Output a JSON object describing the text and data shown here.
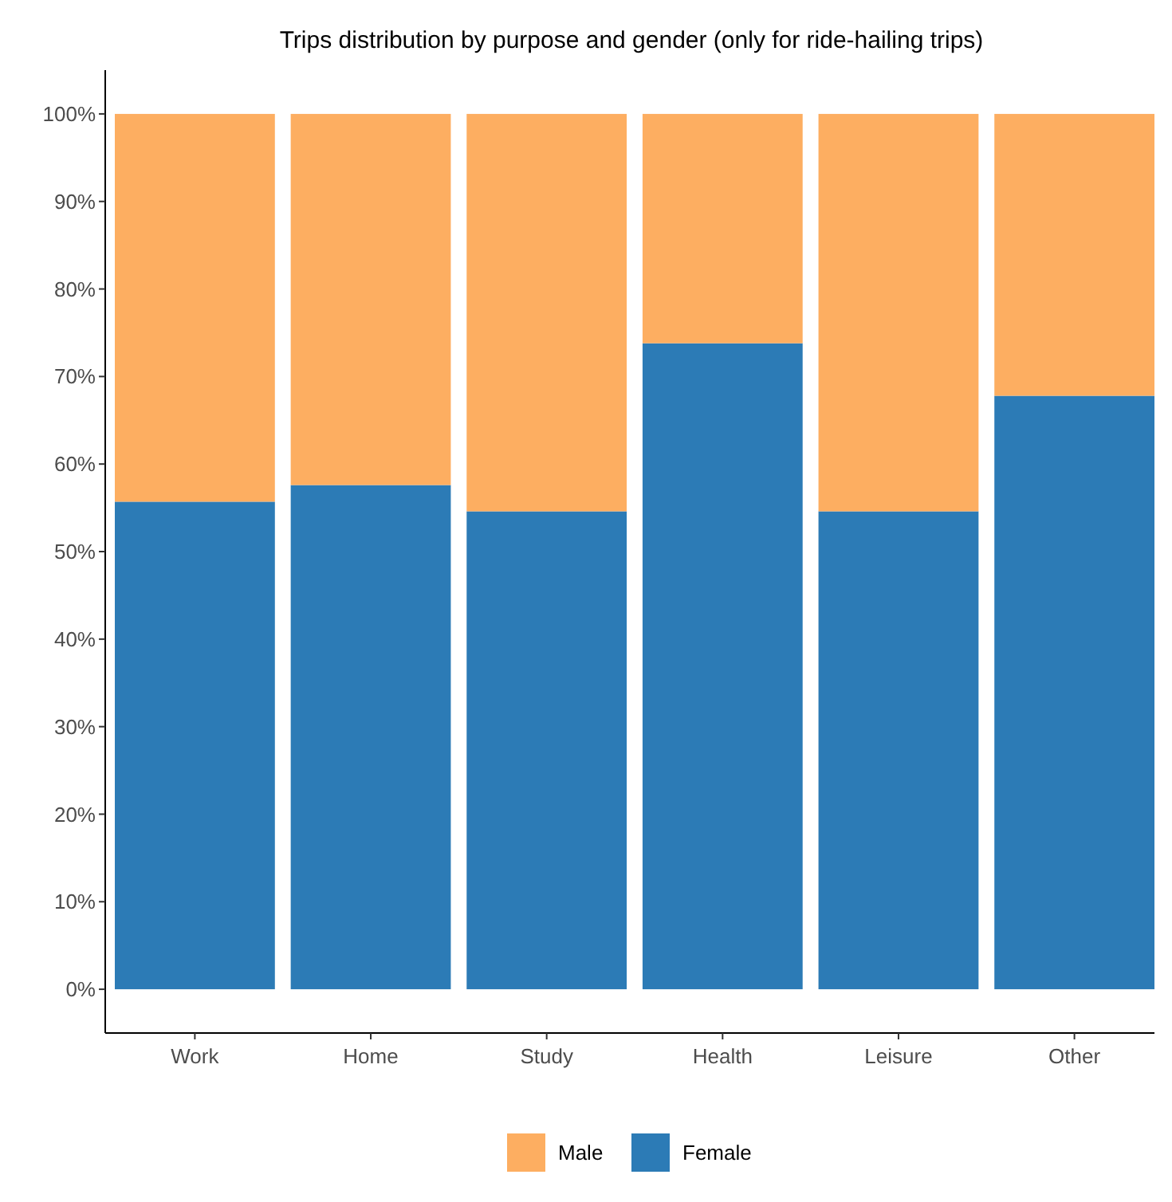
{
  "chart_data": {
    "type": "bar",
    "title": "Trips distribution by purpose and gender (only for ride-hailing trips)",
    "categories": [
      "Work",
      "Home",
      "Study",
      "Health",
      "Leisure",
      "Other"
    ],
    "stacked": true,
    "legend": "bottom",
    "grid": false,
    "series": [
      {
        "name": "Female",
        "color": "#2c7bb6",
        "values": [
          55.7,
          57.6,
          54.6,
          73.8,
          54.6,
          67.8
        ]
      },
      {
        "name": "Male",
        "color": "#fdae61",
        "values": [
          44.3,
          42.4,
          45.4,
          26.2,
          45.4,
          32.2
        ]
      }
    ],
    "ylim": [
      -5,
      105
    ],
    "yticks": [
      {
        "value": 0,
        "label": "0%"
      },
      {
        "value": 10,
        "label": "10%"
      },
      {
        "value": 20,
        "label": "20%"
      },
      {
        "value": 30,
        "label": "30%"
      },
      {
        "value": 40,
        "label": "40%"
      },
      {
        "value": 50,
        "label": "50%"
      },
      {
        "value": 60,
        "label": "60%"
      },
      {
        "value": 70,
        "label": "70%"
      },
      {
        "value": 80,
        "label": "80%"
      },
      {
        "value": 90,
        "label": "90%"
      },
      {
        "value": 100,
        "label": "100%"
      }
    ]
  }
}
